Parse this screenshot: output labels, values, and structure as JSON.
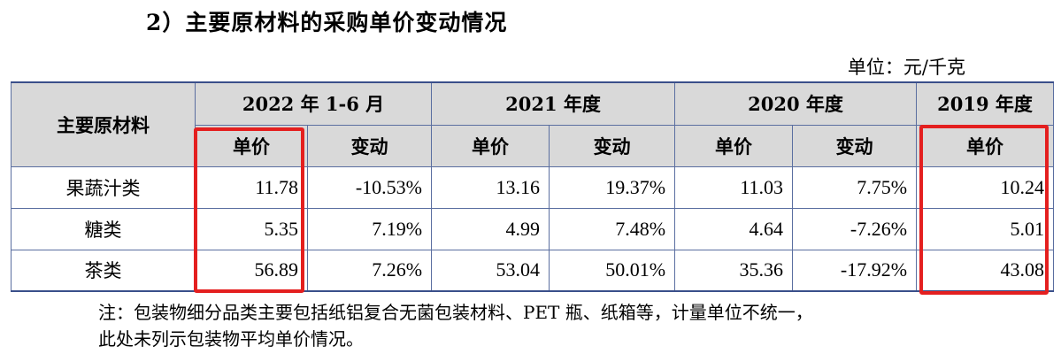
{
  "title": "2）主要原材料的采购单价变动情况",
  "unit": "单位：元/千克",
  "table": {
    "row_header": "主要原材料",
    "periods": [
      "2022 年 1-6 月",
      "2021 年度",
      "2020 年度",
      "2019 年度"
    ],
    "subheaders": {
      "price": "单价",
      "change": "变动"
    },
    "rows": [
      {
        "material": "果蔬汁类",
        "p2022h1": "11.78",
        "c2022h1": "-10.53%",
        "p2021": "13.16",
        "c2021": "19.37%",
        "p2020": "11.03",
        "c2020": "7.75%",
        "p2019": "10.24"
      },
      {
        "material": "糖类",
        "p2022h1": "5.35",
        "c2022h1": "7.19%",
        "p2021": "4.99",
        "c2021": "7.48%",
        "p2020": "4.64",
        "c2020": "-7.26%",
        "p2019": "5.01"
      },
      {
        "material": "茶类",
        "p2022h1": "56.89",
        "c2022h1": "7.26%",
        "p2021": "53.04",
        "c2021": "50.01%",
        "p2020": "35.36",
        "c2020": "-17.92%",
        "p2019": "43.08"
      }
    ]
  },
  "note_lines": [
    "注：包装物细分品类主要包括纸铝复合无菌包装材料、PET 瓶、纸箱等，计量单位不统一，",
    "此处未列示包装物平均单价情况。"
  ],
  "colors": {
    "highlight": "#e41f1f",
    "header_bg": "#d9d9d9",
    "border": "#5a6ea0"
  }
}
